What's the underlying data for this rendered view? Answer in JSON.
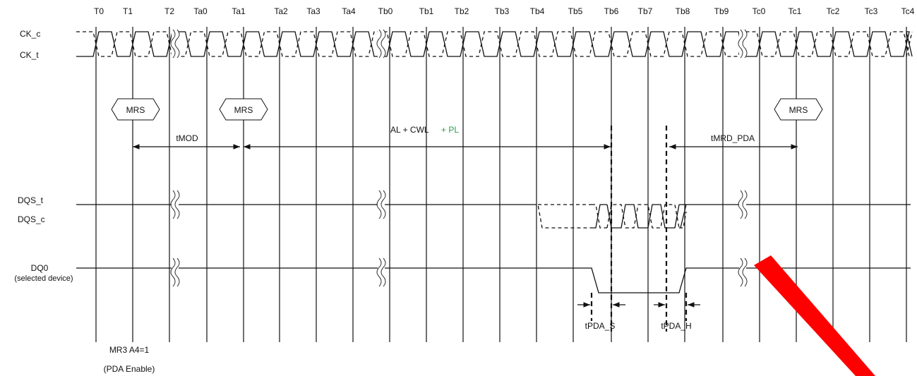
{
  "clock_labels": [
    "T0",
    "T1",
    "T2",
    "Ta0",
    "Ta1",
    "Ta2",
    "Ta3",
    "Ta4",
    "Tb0",
    "Tb1",
    "Tb2",
    "Tb3",
    "Tb4",
    "Tb5",
    "Tb6",
    "Tb7",
    "Tb8",
    "Tb9",
    "Tc0",
    "Tc1",
    "Tc2",
    "Tc3",
    "Tc4"
  ],
  "signals": {
    "ck_c": "CK_c",
    "ck_t": "CK_t",
    "dqs_t": "DQS_t",
    "dqs_c": "DQS_c",
    "dq0": "DQ0",
    "dq0_sub": "(selected device)"
  },
  "commands": {
    "mrs_1": "MRS",
    "mrs_2": "MRS",
    "mrs_3": "MRS"
  },
  "timings": {
    "tmod": "tMOD",
    "al_cwl": "AL + CWL",
    "al_cwl_pl": "+ PL",
    "tmrd_pda": "tMRD_PDA",
    "tpda_s": "tPDA_S",
    "tpda_h": "tPDA_H"
  },
  "note": {
    "line1": "MR3 A4=1",
    "line2": "(PDA Enable)"
  },
  "colors": {
    "pl_accent": "#2e9a4a",
    "watermark": "#ff0000"
  }
}
